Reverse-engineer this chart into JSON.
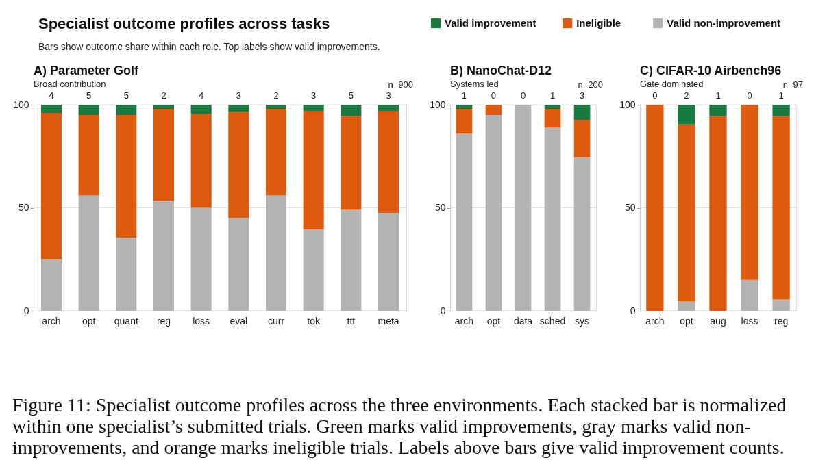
{
  "chart_data": [
    {
      "type": "bar",
      "stacked": true,
      "title": "A) Parameter Golf",
      "subtitle": "Broad contribution",
      "annotations": [
        "Specialist outcome profiles across tasks",
        "Bars show outcome share within each role. Top labels show valid improvements.",
        "n=900",
        "Figure 11: Specialist outcome profiles across the three environments. Each stacked bar is normalized within one specialist’s submitted trials. Green marks valid improvements, gray marks valid non-improvements, and orange marks ineligible trials. Labels above bars give valid improvement counts.",
        {
          "text": "4",
          "x": "arch",
          "y": 100
        },
        {
          "text": "5",
          "x": "opt",
          "y": 100
        },
        {
          "text": "5",
          "x": "quant",
          "y": 100
        },
        {
          "text": "2",
          "x": "reg",
          "y": 100
        },
        {
          "text": "4",
          "x": "loss",
          "y": 100
        },
        {
          "text": "3",
          "x": "eval",
          "y": 100
        },
        {
          "text": "2",
          "x": "curr",
          "y": 100
        },
        {
          "text": "3",
          "x": "tok",
          "y": 100
        },
        {
          "text": "5",
          "x": "ttt",
          "y": 100
        },
        {
          "text": "3",
          "x": "meta",
          "y": 100
        }
      ],
      "categories": [
        "arch",
        "opt",
        "quant",
        "reg",
        "loss",
        "eval",
        "curr",
        "tok",
        "ttt",
        "meta"
      ],
      "series": [
        {
          "name": "Valid non-improvement",
          "color": "#b3b3b3",
          "values": [
            25,
            56,
            35.5,
            53.5,
            50,
            45,
            56,
            39.5,
            49,
            47.5
          ]
        },
        {
          "name": "Ineligible",
          "color": "#dd5a0e",
          "values": [
            71,
            39,
            59.5,
            44.5,
            45.5,
            51.5,
            42,
            57.5,
            45.5,
            49.5
          ]
        },
        {
          "name": "Valid improvement",
          "color": "#187a41",
          "values": [
            4,
            5,
            5,
            2,
            4.5,
            3.5,
            2,
            3,
            5.5,
            3
          ]
        }
      ],
      "ylim": [
        0,
        100
      ],
      "yticks": [
        0,
        50,
        100
      ],
      "grid": "y",
      "legend": "top right"
    },
    {
      "type": "bar",
      "stacked": true,
      "title": "B) NanoChat-D12",
      "subtitle": "Systems led",
      "annotations": [
        "n=200",
        {
          "text": "1",
          "x": "arch",
          "y": 100
        },
        {
          "text": "0",
          "x": "opt",
          "y": 100
        },
        {
          "text": "0",
          "x": "data",
          "y": 100
        },
        {
          "text": "1",
          "x": "sched",
          "y": 100
        },
        {
          "text": "3",
          "x": "sys",
          "y": 100
        }
      ],
      "categories": [
        "arch",
        "opt",
        "data",
        "sched",
        "sys"
      ],
      "series": [
        {
          "color": "#b3b3b3",
          "values": [
            86,
            95,
            100,
            89,
            74.5
          ]
        },
        {
          "color": "#dd5a0e",
          "values": [
            12,
            5,
            0,
            9,
            18
          ]
        },
        {
          "color": "#187a41",
          "values": [
            2,
            0,
            0,
            2,
            7.5
          ]
        }
      ],
      "ylim": [
        0,
        100
      ],
      "yticks": [
        0,
        50,
        100
      ],
      "grid": "y"
    },
    {
      "type": "bar",
      "stacked": true,
      "title": "C) CIFAR-10 Airbench96",
      "subtitle": "Gate dominated",
      "annotations": [
        "n=97",
        {
          "text": "0",
          "x": "arch",
          "y": 100
        },
        {
          "text": "2",
          "x": "opt",
          "y": 100
        },
        {
          "text": "1",
          "x": "aug",
          "y": 100
        },
        {
          "text": "0",
          "x": "loss",
          "y": 100
        },
        {
          "text": "1",
          "x": "reg",
          "y": 100
        }
      ],
      "categories": [
        "arch",
        "opt",
        "aug",
        "loss",
        "reg"
      ],
      "series": [
        {
          "color": "#b3b3b3",
          "values": [
            0,
            4.5,
            0,
            15,
            5.5
          ]
        },
        {
          "color": "#dd5a0e",
          "values": [
            100,
            86,
            94.5,
            85,
            89
          ]
        },
        {
          "color": "#187a41",
          "values": [
            0,
            9.5,
            5.5,
            0,
            5.5
          ]
        }
      ],
      "ylim": [
        0,
        100
      ],
      "yticks": [
        0,
        50,
        100
      ],
      "grid": "y"
    }
  ]
}
